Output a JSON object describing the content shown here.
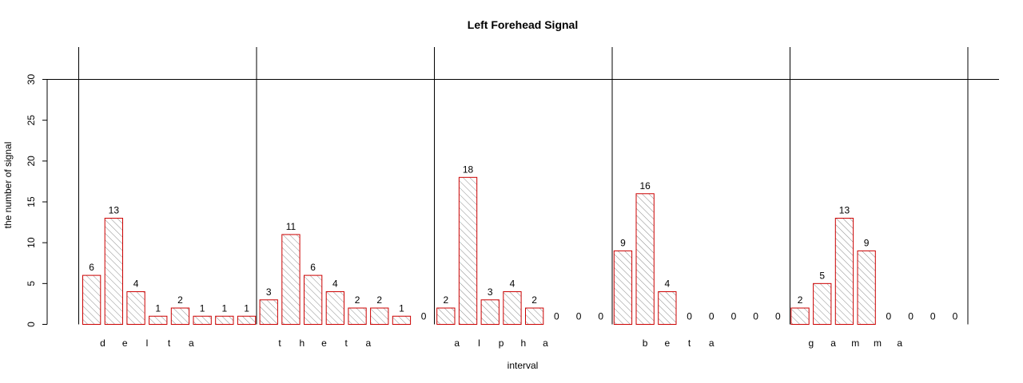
{
  "chart_data": {
    "type": "bar",
    "title": "Left Forehead Signal",
    "xlabel": "interval",
    "ylabel": "the number of signal",
    "ylim": [
      0,
      30
    ],
    "yticks": [
      0,
      5,
      10,
      15,
      20,
      25,
      30
    ],
    "groups": [
      {
        "label": "delta",
        "letters": [
          "d",
          "e",
          "l",
          "t",
          "a"
        ],
        "values": [
          6,
          13,
          4,
          1,
          2,
          1,
          1,
          1
        ]
      },
      {
        "label": "theta",
        "letters": [
          "t",
          "h",
          "e",
          "t",
          "a"
        ],
        "values": [
          3,
          11,
          6,
          4,
          2,
          2,
          1,
          0
        ]
      },
      {
        "label": "alpha",
        "letters": [
          "a",
          "l",
          "p",
          "h",
          "a"
        ],
        "values": [
          2,
          18,
          3,
          4,
          2,
          0,
          0,
          0
        ]
      },
      {
        "label": "beta",
        "letters": [
          "b",
          "e",
          "t",
          "a"
        ],
        "values": [
          9,
          16,
          4,
          0,
          0,
          0,
          0,
          0
        ]
      },
      {
        "label": "gamma",
        "letters": [
          "g",
          "a",
          "m",
          "m",
          "a"
        ],
        "values": [
          2,
          5,
          13,
          9,
          0,
          0,
          0,
          0
        ]
      }
    ],
    "colors": {
      "bar_border": "#cc0000",
      "hatch": "#888888",
      "lines": "#000000"
    },
    "hatched_bars": true,
    "horizontal_reference_line_at": 30
  }
}
